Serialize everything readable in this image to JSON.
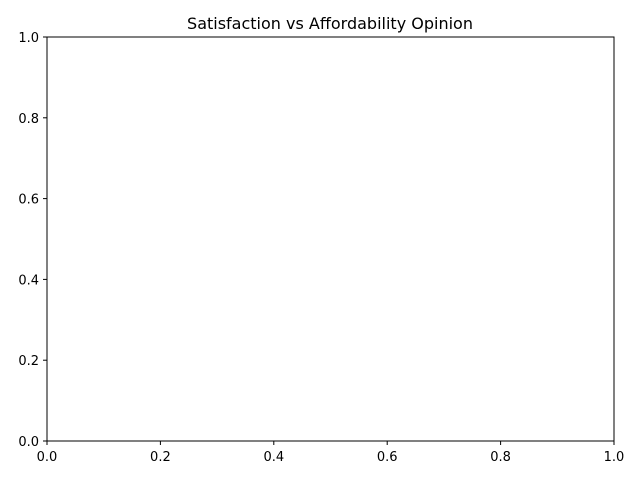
{
  "chart_data": {
    "type": "scatter",
    "title": "Satisfaction vs Affordability Opinion",
    "xlabel": "",
    "ylabel": "",
    "xlim": [
      0.0,
      1.0
    ],
    "ylim": [
      0.0,
      1.0
    ],
    "grid": false,
    "series": [],
    "x_ticks": [
      "0.0",
      "0.2",
      "0.4",
      "0.6",
      "0.8",
      "1.0"
    ],
    "y_ticks": [
      "0.0",
      "0.2",
      "0.4",
      "0.6",
      "0.8",
      "1.0"
    ]
  }
}
